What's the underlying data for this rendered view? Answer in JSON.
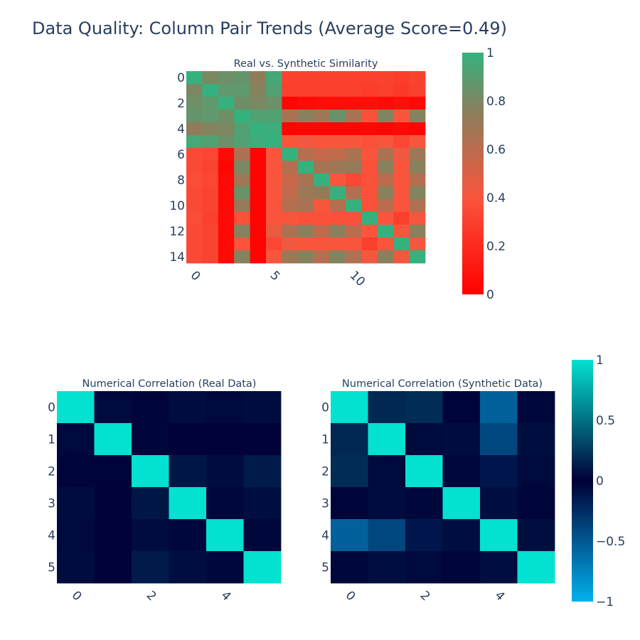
{
  "page": {
    "title": "Data Quality: Column Pair Trends (Average Score=0.49)"
  },
  "colors": {
    "similarity_scale": [
      "#ff0000",
      "#f9553d",
      "#8c7e5b",
      "#35b17e"
    ],
    "correlation_scale": [
      "#03b1ed",
      "#000036",
      "#03e1d1"
    ],
    "text": "#2a3f5f"
  },
  "chart_data": [
    {
      "type": "heatmap",
      "title": "Real vs. Synthetic Similarity",
      "x_ticks": [
        0,
        5,
        10
      ],
      "y_ticks": [
        0,
        2,
        4,
        6,
        8,
        10,
        12,
        14
      ],
      "colorbar": {
        "range": [
          0,
          1
        ],
        "ticks": [
          "0",
          "0.2",
          "0.4",
          "0.6",
          "0.8",
          "1"
        ]
      },
      "z": [
        [
          1.0,
          0.8,
          0.84,
          0.86,
          0.74,
          0.95,
          0.31,
          0.31,
          0.31,
          0.31,
          0.31,
          0.3,
          0.31,
          0.29,
          0.31
        ],
        [
          0.8,
          1.0,
          0.88,
          0.88,
          0.77,
          0.92,
          0.3,
          0.3,
          0.3,
          0.3,
          0.3,
          0.28,
          0.3,
          0.27,
          0.3
        ],
        [
          0.84,
          0.88,
          1.0,
          0.83,
          0.8,
          0.84,
          0.03,
          0.05,
          0.06,
          0.06,
          0.06,
          0.07,
          0.05,
          0.07,
          0.04
        ],
        [
          0.86,
          0.88,
          0.83,
          1.0,
          0.92,
          0.92,
          0.65,
          0.76,
          0.7,
          0.85,
          0.66,
          0.38,
          0.78,
          0.4,
          0.77
        ],
        [
          0.74,
          0.77,
          0.8,
          0.92,
          1.0,
          0.98,
          0.02,
          0.03,
          0.03,
          0.03,
          0.03,
          0.04,
          0.03,
          0.04,
          0.03
        ],
        [
          0.95,
          0.92,
          0.84,
          0.92,
          0.98,
          1.0,
          0.4,
          0.42,
          0.4,
          0.4,
          0.4,
          0.38,
          0.4,
          0.34,
          0.4
        ],
        [
          0.35,
          0.33,
          0.05,
          0.65,
          0.02,
          0.4,
          1.0,
          0.62,
          0.56,
          0.58,
          0.65,
          0.4,
          0.65,
          0.43,
          0.7
        ],
        [
          0.35,
          0.32,
          0.03,
          0.8,
          0.02,
          0.4,
          0.62,
          1.0,
          0.66,
          0.7,
          0.72,
          0.38,
          0.76,
          0.4,
          0.76
        ],
        [
          0.36,
          0.33,
          0.04,
          0.7,
          0.02,
          0.4,
          0.56,
          0.66,
          1.0,
          0.4,
          0.34,
          0.38,
          0.6,
          0.4,
          0.62
        ],
        [
          0.35,
          0.32,
          0.04,
          0.85,
          0.02,
          0.4,
          0.58,
          0.7,
          0.72,
          1.0,
          0.62,
          0.38,
          0.76,
          0.4,
          0.78
        ],
        [
          0.35,
          0.32,
          0.04,
          0.72,
          0.02,
          0.4,
          0.62,
          0.66,
          0.4,
          0.62,
          1.0,
          0.38,
          0.6,
          0.4,
          0.64
        ],
        [
          0.36,
          0.3,
          0.05,
          0.38,
          0.02,
          0.4,
          0.4,
          0.38,
          0.38,
          0.38,
          0.38,
          1.0,
          0.4,
          0.3,
          0.42
        ],
        [
          0.35,
          0.32,
          0.04,
          0.78,
          0.02,
          0.45,
          0.65,
          0.76,
          0.6,
          0.76,
          0.6,
          0.4,
          1.0,
          0.4,
          0.76
        ],
        [
          0.35,
          0.32,
          0.04,
          0.4,
          0.02,
          0.34,
          0.43,
          0.4,
          0.4,
          0.4,
          0.4,
          0.3,
          0.4,
          1.0,
          0.42
        ],
        [
          0.35,
          0.32,
          0.04,
          0.77,
          0.02,
          0.4,
          0.7,
          0.76,
          0.62,
          0.78,
          0.64,
          0.42,
          0.76,
          0.42,
          1.0
        ]
      ]
    },
    {
      "type": "heatmap",
      "title": "Numerical Correlation (Real Data)",
      "x_ticks": [
        0,
        2,
        4
      ],
      "y_ticks": [
        0,
        1,
        2,
        3,
        4,
        5
      ],
      "z": [
        [
          1.0,
          0.04,
          0.02,
          0.05,
          0.04,
          0.05
        ],
        [
          0.04,
          1.0,
          0.02,
          0.01,
          0.01,
          0.01
        ],
        [
          0.02,
          0.02,
          1.0,
          0.1,
          0.05,
          0.12
        ],
        [
          0.05,
          0.01,
          0.1,
          1.0,
          0.03,
          0.06
        ],
        [
          0.04,
          0.01,
          0.05,
          0.03,
          1.0,
          0.03
        ],
        [
          0.05,
          0.01,
          0.12,
          0.06,
          0.03,
          1.0
        ]
      ]
    },
    {
      "type": "heatmap",
      "title": "Numerical Correlation (Synthetic Data)",
      "x_ticks": [
        0,
        2,
        4
      ],
      "y_ticks": [
        0,
        1,
        2,
        3,
        4,
        5
      ],
      "colorbar": {
        "range": [
          -1,
          1
        ],
        "ticks": [
          "−1",
          "−0.5",
          "0",
          "0.5",
          "1"
        ]
      },
      "z": [
        [
          1.0,
          0.18,
          0.2,
          0.02,
          -0.55,
          0.03
        ],
        [
          0.18,
          1.0,
          0.04,
          0.05,
          -0.4,
          0.06
        ],
        [
          0.2,
          0.04,
          1.0,
          0.03,
          -0.12,
          0.04
        ],
        [
          0.02,
          0.05,
          0.03,
          1.0,
          0.06,
          0.02
        ],
        [
          -0.55,
          -0.4,
          -0.12,
          0.06,
          1.0,
          0.06
        ],
        [
          0.03,
          0.06,
          0.04,
          0.02,
          0.06,
          1.0
        ]
      ]
    }
  ]
}
